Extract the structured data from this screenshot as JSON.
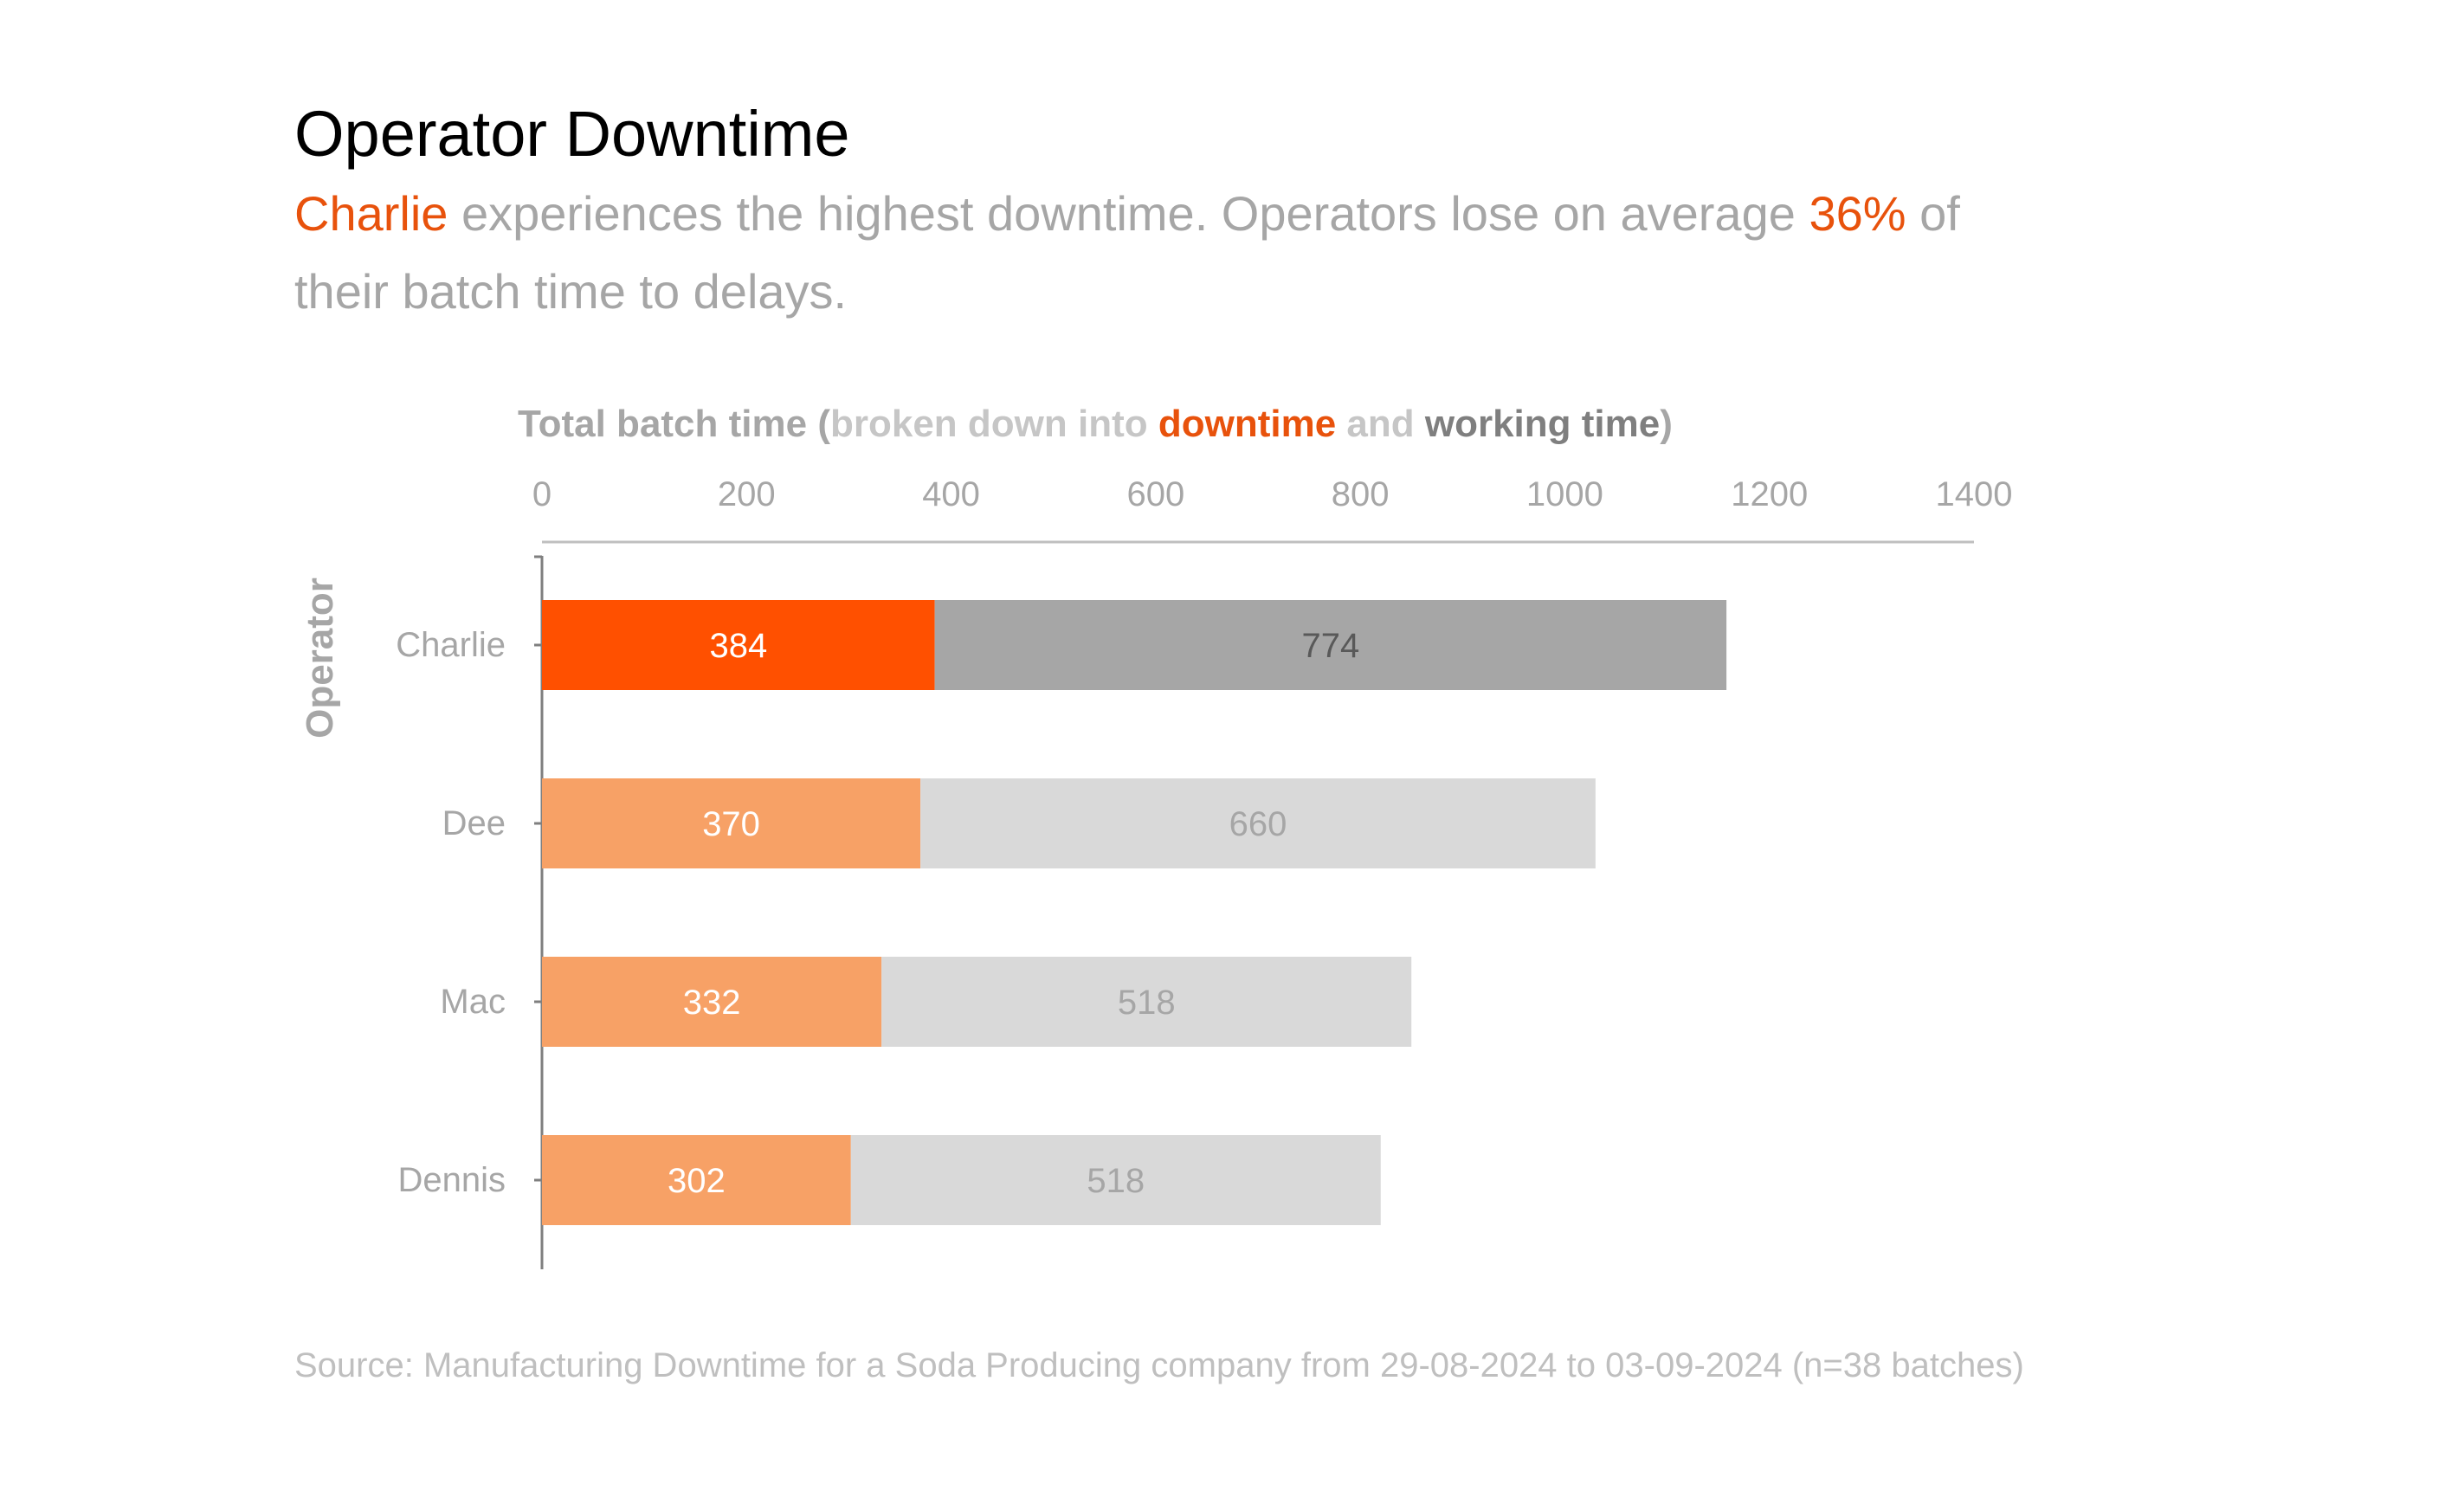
{
  "title": "Operator Downtime",
  "subtitle": {
    "line1": [
      {
        "text": "Charlie",
        "accent": true
      },
      {
        "text": " experiences the highest downtime. Operators lose on average ",
        "accent": false
      },
      {
        "text": "36%",
        "accent": true
      },
      {
        "text": " of",
        "accent": false
      }
    ],
    "line2": "their batch time to delays."
  },
  "source": "Source: Manufacturing Downtime for a Soda Producing company from 29-08-2024 to 03-09-2024 (n=38 batches)",
  "colors": {
    "accent": "#e8520c",
    "downtime_highlight": "#ff5000",
    "downtime": "#f7a166",
    "working_highlight": "#a6a6a6",
    "working": "#d9d9d9",
    "muted_text": "#a6a6a6",
    "dark_label": "#595959"
  },
  "chart_data": {
    "type": "bar",
    "orientation": "horizontal",
    "stacked": true,
    "axis_title_parts": [
      {
        "text": "Total batch time ",
        "color": "#a6a6a6",
        "bold": true
      },
      {
        "text": "(",
        "color": "#a6a6a6",
        "bold": true
      },
      {
        "text": "broken down into ",
        "color": "#c6c6c6",
        "bold": true
      },
      {
        "text": "downtime",
        "color": "#e8520c",
        "bold": true
      },
      {
        "text": " and ",
        "color": "#c6c6c6",
        "bold": true
      },
      {
        "text": "working time",
        "color": "#7f7f7f",
        "bold": true
      },
      {
        "text": ")",
        "color": "#a6a6a6",
        "bold": true
      }
    ],
    "ylabel": "Operator",
    "categories": [
      "Charlie",
      "Dee",
      "Mac",
      "Dennis"
    ],
    "series": [
      {
        "name": "downtime",
        "values": [
          384,
          370,
          332,
          302
        ]
      },
      {
        "name": "working time",
        "values": [
          774,
          660,
          518,
          518
        ]
      }
    ],
    "highlight_index": 0,
    "xlim": [
      0,
      1400
    ],
    "xticks": [
      0,
      200,
      400,
      600,
      800,
      1000,
      1200,
      1400
    ],
    "x_axis_position": "top",
    "grid": false
  }
}
